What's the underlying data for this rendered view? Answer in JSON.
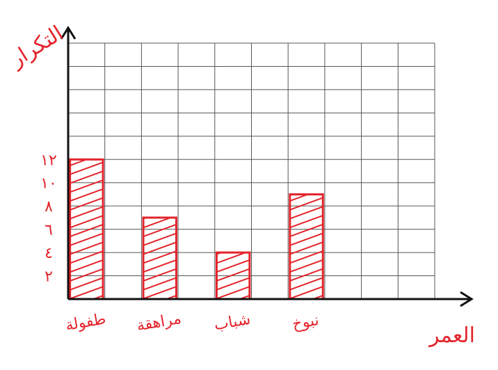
{
  "chart_data": {
    "type": "bar",
    "title": "",
    "xlabel": "العمر",
    "ylabel": "التكرار",
    "categories": [
      "طفولة",
      "مراهقة",
      "شباب",
      "نبوخ"
    ],
    "values": [
      12,
      7,
      4,
      9
    ],
    "ylim": [
      0,
      22
    ],
    "yticks": [
      {
        "value": 2,
        "label": "٢"
      },
      {
        "value": 4,
        "label": "٤"
      },
      {
        "value": 6,
        "label": "٦"
      },
      {
        "value": 8,
        "label": "٨"
      },
      {
        "value": 10,
        "label": "١٠"
      },
      {
        "value": 12,
        "label": "١٢"
      }
    ],
    "grid": true,
    "colors": {
      "bars": "#e3242b",
      "grid": "#555555",
      "axes": "#111111",
      "labels": "#e3242b"
    }
  }
}
